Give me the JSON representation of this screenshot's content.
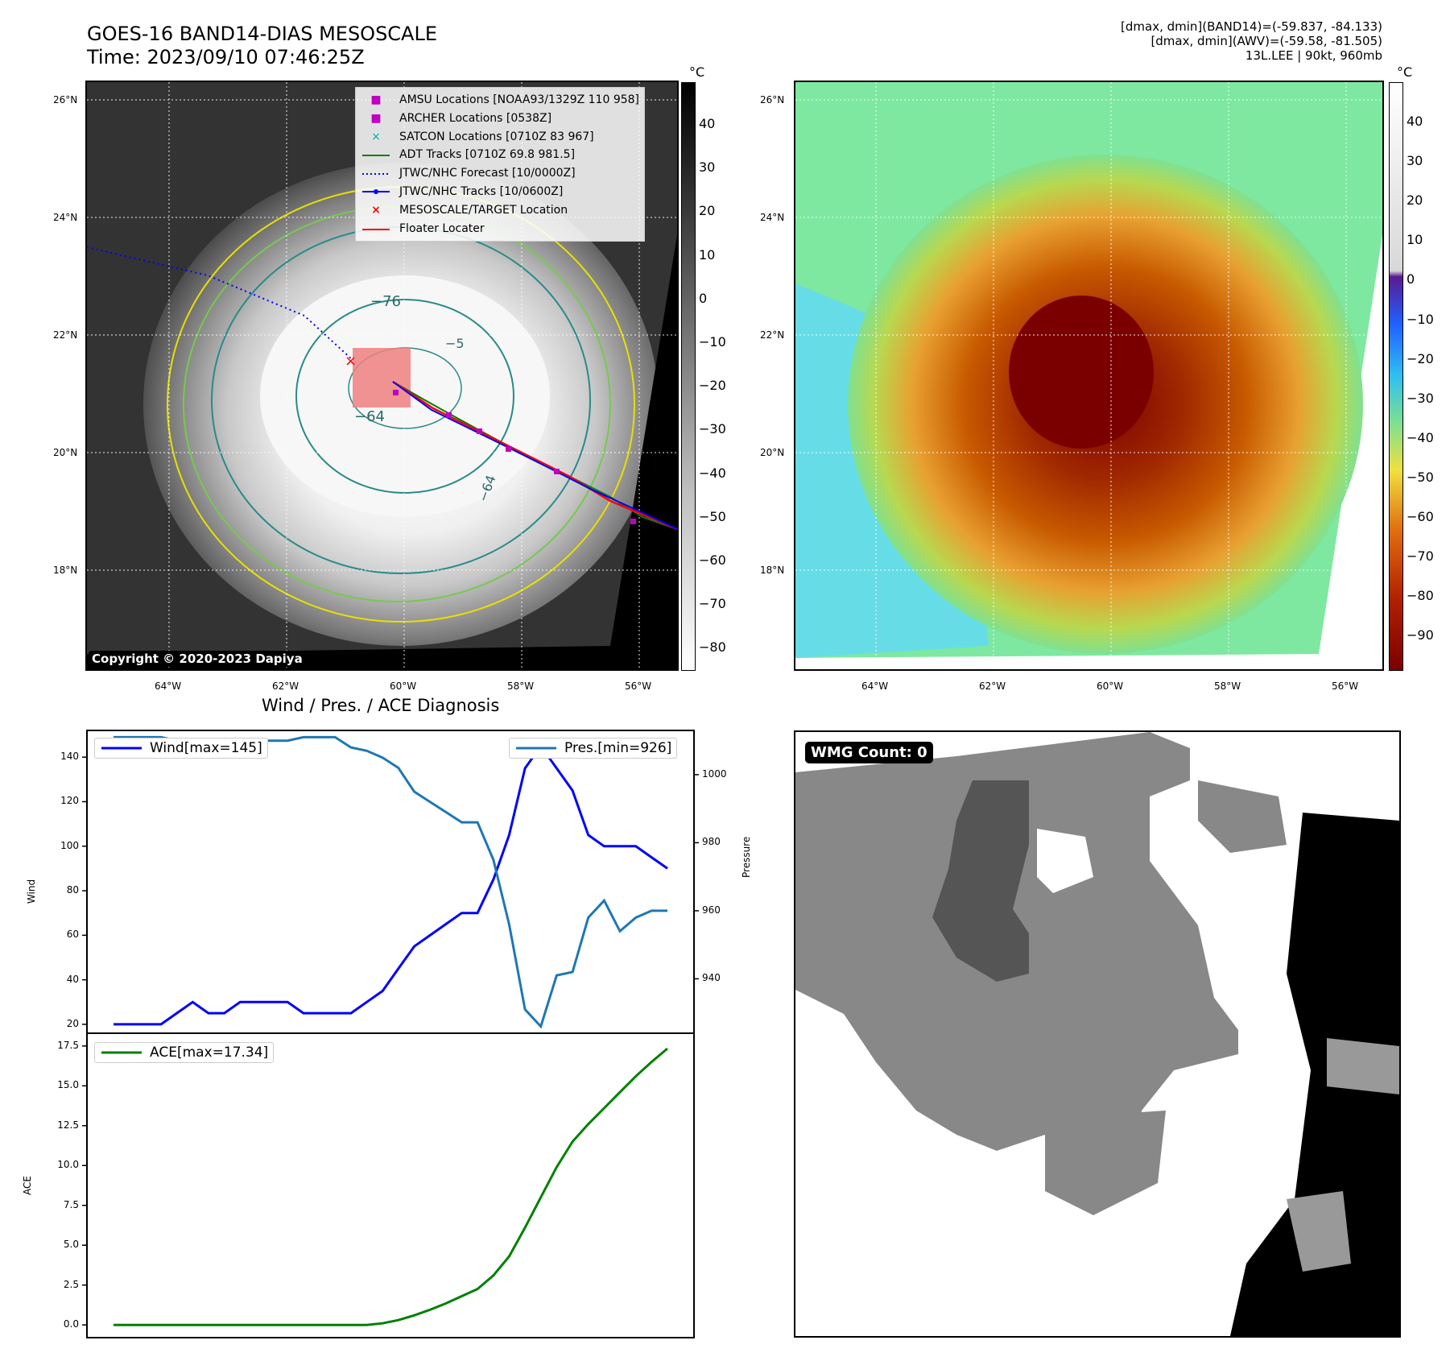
{
  "header": {
    "title_line1": "GOES-16 BAND14-DIAS MESOSCALE",
    "title_line2": "Time: 2023/09/10 07:46:25Z",
    "meta_line1": "[dmax, dmin](BAND14)=(-59.837, -84.133)",
    "meta_line2": "[dmax, dmin](AWV)=(-59.58, -81.505)",
    "meta_line3": "13L.LEE | 90kt, 960mb"
  },
  "maps": {
    "lat_labels": [
      "26°N",
      "24°N",
      "22°N",
      "20°N",
      "18°N"
    ],
    "lon_labels": [
      "64°W",
      "62°W",
      "60°W",
      "58°W",
      "56°W"
    ],
    "left_colorbar": {
      "unit": "°C",
      "ticks": [
        "40",
        "30",
        "20",
        "10",
        "0",
        "−10",
        "−20",
        "−30",
        "−40",
        "−50",
        "−60",
        "−70",
        "−80"
      ]
    },
    "right_colorbar": {
      "unit": "°C",
      "ticks": [
        "40",
        "30",
        "20",
        "10",
        "0",
        "−10",
        "−20",
        "−30",
        "−40",
        "−50",
        "−60",
        "−70",
        "−80",
        "−90"
      ]
    },
    "contour_labels": [
      "−76",
      "−64",
      "−64",
      "−5"
    ],
    "copyright": "Copyright © 2020-2023 Dapiya",
    "legend": [
      {
        "label": "AMSU Locations [NOAA93/1329Z 110 958]",
        "color": "#c000c0",
        "symbol": "square"
      },
      {
        "label": "ARCHER Locations [0538Z]",
        "color": "#c000c0",
        "symbol": "square"
      },
      {
        "label": "SATCON Locations [0710Z 83 967]",
        "color": "#00b0b0",
        "symbol": "x"
      },
      {
        "label": "ADT Tracks [0710Z 69.8 981.5]",
        "color": "#008000",
        "symbol": "line"
      },
      {
        "label": "JTWC/NHC Forecast [10/0000Z]",
        "color": "#0000ff",
        "symbol": "dotted"
      },
      {
        "label": "JTWC/NHC Tracks [10/0600Z]",
        "color": "#0000ff",
        "symbol": "line-dot"
      },
      {
        "label": "MESOSCALE/TARGET Location",
        "color": "#ff0000",
        "symbol": "x"
      },
      {
        "label": "Floater Locater",
        "color": "#ff0000",
        "symbol": "line"
      }
    ]
  },
  "diagnosis": {
    "title": "Wind / Pres. / ACE Diagnosis",
    "wind_legend": "Wind[max=145]",
    "pres_legend": "Pres.[min=926]",
    "ace_legend": "ACE[max=17.34]",
    "wind_ylabel": "Wind",
    "pres_ylabel": "Pressure",
    "ace_ylabel": "ACE",
    "wind_ticks": [
      "140",
      "120",
      "100",
      "80",
      "60",
      "40",
      "20"
    ],
    "pres_ticks": [
      "1000",
      "980",
      "960",
      "940"
    ],
    "ace_ticks": [
      "17.5",
      "15.0",
      "12.5",
      "10.0",
      "7.5",
      "5.0",
      "2.5",
      "0.0"
    ]
  },
  "wmg": {
    "label": "WMG Count: 0"
  },
  "chart_data": [
    {
      "type": "line",
      "title": "Wind / Pres. / ACE Diagnosis",
      "ylabel": "Wind",
      "ylim": [
        16,
        152
      ],
      "series": [
        {
          "name": "Wind[max=145]",
          "color": "#0000ff",
          "values": [
            20,
            20,
            20,
            20,
            25,
            30,
            25,
            25,
            30,
            30,
            30,
            30,
            25,
            25,
            25,
            25,
            30,
            35,
            45,
            55,
            60,
            65,
            70,
            70,
            85,
            105,
            135,
            145,
            135,
            125,
            105,
            100,
            100,
            100,
            95,
            90
          ]
        }
      ]
    },
    {
      "type": "line",
      "ylabel": "Pressure",
      "ylim": [
        924,
        1013
      ],
      "series": [
        {
          "name": "Pres.[min=926]",
          "color": "#1f77b4",
          "values": [
            1011,
            1011,
            1011,
            1011,
            1010,
            1010,
            1010,
            1010,
            1010,
            1010,
            1010,
            1010,
            1011,
            1011,
            1011,
            1008,
            1007,
            1005,
            1002,
            995,
            992,
            989,
            986,
            986,
            975,
            956,
            931,
            926,
            941,
            942,
            958,
            963,
            954,
            958,
            960,
            960
          ]
        }
      ]
    },
    {
      "type": "line",
      "ylabel": "ACE",
      "ylim": [
        -0.8,
        18.3
      ],
      "series": [
        {
          "name": "ACE[max=17.34]",
          "color": "#008000",
          "values": [
            0,
            0,
            0,
            0,
            0,
            0,
            0,
            0,
            0,
            0,
            0,
            0,
            0,
            0,
            0,
            0,
            0,
            0.1,
            0.3,
            0.6,
            0.95,
            1.35,
            1.8,
            2.25,
            3.1,
            4.3,
            6.1,
            8.0,
            9.9,
            11.5,
            12.6,
            13.6,
            14.6,
            15.6,
            16.5,
            17.34
          ]
        }
      ]
    }
  ]
}
